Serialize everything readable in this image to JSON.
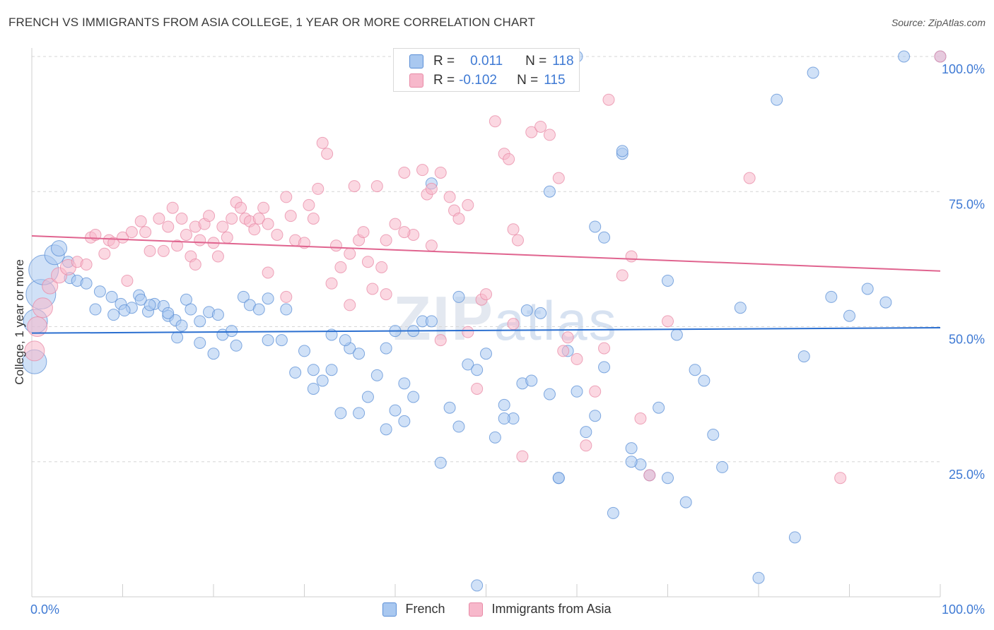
{
  "header": {
    "title": "FRENCH VS IMMIGRANTS FROM ASIA COLLEGE, 1 YEAR OR MORE CORRELATION CHART",
    "source": "Source: ZipAtlas.com"
  },
  "legend_stats": {
    "r_label": "R =",
    "n_label": "N =",
    "french": {
      "r": "0.011",
      "n": "118"
    },
    "asia": {
      "r": "-0.102",
      "n": "115"
    }
  },
  "watermark": {
    "zip": "ZIP",
    "atlas": "atlas"
  },
  "colors": {
    "french_fill": "#a9c8f0",
    "french_stroke": "#5b8fd6",
    "french_line": "#2b6fd0",
    "asia_fill": "#f7b8cb",
    "asia_stroke": "#e88aa6",
    "asia_line": "#e0648f",
    "axis_text": "#3f7ad4",
    "grid": "#d6d6d6"
  },
  "chart_data": {
    "type": "scatter",
    "title": "FRENCH VS IMMIGRANTS FROM ASIA COLLEGE, 1 YEAR OR MORE CORRELATION CHART",
    "xlabel": "",
    "ylabel": "College, 1 year or more",
    "xlim": [
      0,
      100
    ],
    "ylim": [
      0,
      100
    ],
    "x_tick_labels": [
      "0.0%",
      "100.0%"
    ],
    "y_tick_labels": [
      "25.0%",
      "50.0%",
      "75.0%",
      "100.0%"
    ],
    "y_ticks": [
      25,
      50,
      75,
      100
    ],
    "grid": true,
    "legend_position": "bottom",
    "series": [
      {
        "name": "French",
        "r": 0.011,
        "n": 118,
        "trend": {
          "x": [
            0,
            100
          ],
          "y": [
            48.8,
            49.8
          ]
        },
        "points": [
          [
            0.3,
            43.5,
            4
          ],
          [
            0.4,
            51,
            4
          ],
          [
            1,
            56,
            5
          ],
          [
            1.3,
            60.5,
            5
          ],
          [
            2.5,
            63.3,
            3
          ],
          [
            3,
            64.5,
            2
          ],
          [
            4,
            62,
            1
          ],
          [
            4.2,
            59,
            1
          ],
          [
            5,
            58.5,
            1
          ],
          [
            6,
            58,
            1
          ],
          [
            7.5,
            56.5,
            1
          ],
          [
            8.8,
            55.5,
            1
          ],
          [
            9.8,
            54.2,
            1
          ],
          [
            11,
            53.5,
            1
          ],
          [
            11.8,
            55.8,
            1
          ],
          [
            12.8,
            52.8,
            1
          ],
          [
            7,
            53.2,
            1
          ],
          [
            9,
            52.2,
            1
          ],
          [
            10.2,
            53,
            1
          ],
          [
            13.5,
            54.2,
            1
          ],
          [
            14.5,
            53.8,
            1
          ],
          [
            15,
            52,
            1
          ],
          [
            15.8,
            51.2,
            1
          ],
          [
            16.5,
            50.2,
            1
          ],
          [
            17,
            55,
            1
          ],
          [
            16,
            48,
            1
          ],
          [
            17.5,
            53.2,
            1
          ],
          [
            18.5,
            51,
            1
          ],
          [
            19.5,
            52.7,
            1
          ],
          [
            20.5,
            52.2,
            1
          ],
          [
            21,
            48.5,
            1
          ],
          [
            22,
            49.2,
            1
          ],
          [
            23.3,
            55.5,
            1
          ],
          [
            24,
            54,
            1
          ],
          [
            22.5,
            46.5,
            1
          ],
          [
            25,
            53.2,
            1
          ],
          [
            26,
            55.2,
            1
          ],
          [
            27.5,
            47.5,
            1
          ],
          [
            29,
            41.5,
            1
          ],
          [
            30,
            45.5,
            1
          ],
          [
            31,
            38.5,
            1
          ],
          [
            32,
            40,
            1
          ],
          [
            33,
            42,
            1
          ],
          [
            34,
            34,
            1
          ],
          [
            35,
            46,
            1
          ],
          [
            36,
            45,
            1
          ],
          [
            37,
            37,
            1
          ],
          [
            38,
            41,
            1
          ],
          [
            39,
            46,
            1
          ],
          [
            40,
            34.5,
            1
          ],
          [
            41,
            32.5,
            1
          ],
          [
            42,
            37,
            1
          ],
          [
            43,
            51,
            1
          ],
          [
            44,
            76.5,
            1
          ],
          [
            45,
            24.8,
            1
          ],
          [
            46,
            35,
            1
          ],
          [
            47,
            31.5,
            1
          ],
          [
            48,
            43,
            1
          ],
          [
            49,
            42,
            1
          ],
          [
            50,
            45,
            1
          ],
          [
            51,
            29.5,
            1
          ],
          [
            52,
            35.5,
            1
          ],
          [
            53,
            33,
            1
          ],
          [
            54,
            39.5,
            1
          ],
          [
            55,
            40,
            1
          ],
          [
            56,
            52.5,
            1
          ],
          [
            57,
            37.5,
            1
          ],
          [
            58,
            22,
            1
          ],
          [
            59,
            45.5,
            1
          ],
          [
            60,
            38,
            1
          ],
          [
            61,
            30.5,
            1
          ],
          [
            62,
            33.5,
            1
          ],
          [
            63,
            42.5,
            1
          ],
          [
            64,
            15.5,
            1
          ],
          [
            65,
            82,
            1
          ],
          [
            66,
            27.5,
            1
          ],
          [
            67,
            24.5,
            1
          ],
          [
            68,
            22.5,
            1
          ],
          [
            69,
            35,
            1
          ],
          [
            70,
            58.5,
            1
          ],
          [
            71,
            48.5,
            1
          ],
          [
            72,
            17.5,
            1
          ],
          [
            73,
            42,
            1
          ],
          [
            74,
            40,
            1
          ],
          [
            75,
            30,
            1
          ],
          [
            76,
            24,
            1
          ],
          [
            78,
            53.5,
            1
          ],
          [
            80,
            3.5,
            1
          ],
          [
            82,
            92,
            1
          ],
          [
            84,
            11,
            1
          ],
          [
            85,
            44.5,
            1
          ],
          [
            86,
            97,
            1
          ],
          [
            88,
            55.5,
            1
          ],
          [
            90,
            52,
            1
          ],
          [
            92,
            57,
            1
          ],
          [
            94,
            54.5,
            1
          ],
          [
            96,
            100,
            1
          ],
          [
            100,
            100,
            1
          ],
          [
            60,
            100,
            1
          ],
          [
            70,
            22,
            1
          ],
          [
            65,
            82.5,
            1
          ],
          [
            57,
            75,
            1
          ],
          [
            62,
            68.5,
            1
          ],
          [
            44,
            51,
            1
          ],
          [
            47,
            55.5,
            1
          ],
          [
            39,
            31,
            1
          ],
          [
            36,
            34,
            1
          ],
          [
            40,
            49.2,
            1
          ],
          [
            28,
            53.2,
            1
          ],
          [
            31,
            42,
            1
          ],
          [
            33,
            48.5,
            1
          ],
          [
            52,
            33,
            1
          ],
          [
            54.5,
            53,
            1
          ],
          [
            42,
            49.2,
            1
          ],
          [
            49,
            2.1,
            1
          ],
          [
            63,
            66.5,
            1
          ],
          [
            58,
            22,
            1
          ],
          [
            66,
            25,
            1
          ],
          [
            41,
            39.5,
            1
          ],
          [
            34.5,
            47.5,
            1
          ],
          [
            26,
            47.5,
            1
          ],
          [
            20,
            45,
            1
          ],
          [
            18.5,
            47,
            1
          ],
          [
            15,
            52.5,
            1
          ],
          [
            13,
            54,
            1
          ],
          [
            12,
            55,
            1
          ]
        ]
      },
      {
        "name": "Immigrants from Asia",
        "r": -0.102,
        "n": 115,
        "trend": {
          "x": [
            0,
            100
          ],
          "y": [
            66.8,
            60.3
          ]
        },
        "points": [
          [
            0.3,
            45.5,
            3
          ],
          [
            0.6,
            50,
            3
          ],
          [
            1.2,
            53.5,
            3
          ],
          [
            2,
            57.5,
            2
          ],
          [
            3,
            59.5,
            2
          ],
          [
            4,
            61,
            2
          ],
          [
            5,
            62,
            1
          ],
          [
            6,
            61.5,
            1
          ],
          [
            6.5,
            66.5,
            1
          ],
          [
            7,
            67,
            1
          ],
          [
            8,
            63.5,
            1
          ],
          [
            8.5,
            66,
            1
          ],
          [
            9,
            65.5,
            1
          ],
          [
            10,
            66.5,
            1
          ],
          [
            10.5,
            58.5,
            1
          ],
          [
            11,
            67.5,
            1
          ],
          [
            12,
            69.5,
            1
          ],
          [
            12.5,
            67.5,
            1
          ],
          [
            13,
            64,
            1
          ],
          [
            14,
            70,
            1
          ],
          [
            14.5,
            64,
            1
          ],
          [
            15,
            68.5,
            1
          ],
          [
            15.5,
            72,
            1
          ],
          [
            16,
            65,
            1
          ],
          [
            16.5,
            70,
            1
          ],
          [
            17,
            67,
            1
          ],
          [
            17.5,
            63,
            1
          ],
          [
            18,
            68.5,
            1
          ],
          [
            18.5,
            66,
            1
          ],
          [
            19,
            69,
            1
          ],
          [
            19.5,
            70.5,
            1
          ],
          [
            20,
            65.5,
            1
          ],
          [
            20.5,
            63,
            1
          ],
          [
            21,
            68.5,
            1
          ],
          [
            22,
            70,
            1
          ],
          [
            22.5,
            73,
            1
          ],
          [
            23,
            72,
            1
          ],
          [
            23.5,
            70,
            1
          ],
          [
            24,
            69.5,
            1
          ],
          [
            25,
            70,
            1
          ],
          [
            25.5,
            72,
            1
          ],
          [
            26,
            69,
            1
          ],
          [
            27,
            67,
            1
          ],
          [
            28,
            74,
            1
          ],
          [
            28.5,
            70.5,
            1
          ],
          [
            29,
            66,
            1
          ],
          [
            30,
            65.5,
            1
          ],
          [
            31,
            70,
            1
          ],
          [
            31.5,
            75.5,
            1
          ],
          [
            32,
            84,
            1
          ],
          [
            32.5,
            82,
            1
          ],
          [
            33,
            58,
            1
          ],
          [
            34,
            61,
            1
          ],
          [
            35,
            54,
            1
          ],
          [
            35.5,
            76,
            1
          ],
          [
            36,
            66,
            1
          ],
          [
            37,
            62,
            1
          ],
          [
            37.5,
            57,
            1
          ],
          [
            38,
            76,
            1
          ],
          [
            38.5,
            61,
            1
          ],
          [
            39,
            56,
            1
          ],
          [
            40,
            69,
            1
          ],
          [
            41,
            78.5,
            1
          ],
          [
            42,
            67,
            1
          ],
          [
            43,
            79,
            1
          ],
          [
            43.5,
            74.5,
            1
          ],
          [
            44,
            65,
            1
          ],
          [
            45,
            78.5,
            1
          ],
          [
            46,
            74,
            1
          ],
          [
            46.5,
            71.5,
            1
          ],
          [
            47,
            70,
            1
          ],
          [
            48,
            72.5,
            1
          ],
          [
            49,
            38.5,
            1
          ],
          [
            49.5,
            55,
            1
          ],
          [
            50,
            56,
            1
          ],
          [
            51,
            88,
            1
          ],
          [
            52,
            82,
            1
          ],
          [
            52.5,
            81,
            1
          ],
          [
            53,
            68,
            1
          ],
          [
            53.5,
            66,
            1
          ],
          [
            54,
            26,
            1
          ],
          [
            55,
            86,
            1
          ],
          [
            56,
            87,
            1
          ],
          [
            57,
            85.5,
            1
          ],
          [
            58,
            77.5,
            1
          ],
          [
            58.5,
            45.5,
            1
          ],
          [
            59,
            48,
            1
          ],
          [
            60,
            44,
            1
          ],
          [
            61,
            28,
            1
          ],
          [
            62,
            38,
            1
          ],
          [
            63,
            46,
            1
          ],
          [
            63.5,
            92,
            1
          ],
          [
            65,
            59.5,
            1
          ],
          [
            66,
            63,
            1
          ],
          [
            67,
            33,
            1
          ],
          [
            68,
            22.5,
            1
          ],
          [
            70,
            51,
            1
          ],
          [
            79,
            77.5,
            1
          ],
          [
            89,
            22,
            1
          ],
          [
            100,
            100,
            1
          ],
          [
            44,
            75.5,
            1
          ],
          [
            35,
            63.5,
            1
          ],
          [
            26,
            60,
            1
          ],
          [
            39,
            66,
            1
          ],
          [
            48,
            49,
            1
          ],
          [
            41,
            67.5,
            1
          ],
          [
            45,
            47.5,
            1
          ],
          [
            53,
            50.5,
            1
          ],
          [
            28,
            55.5,
            1
          ],
          [
            33.5,
            65,
            1
          ],
          [
            36.5,
            67.5,
            1
          ],
          [
            30.5,
            72.5,
            1
          ],
          [
            24.5,
            68,
            1
          ],
          [
            21.5,
            66.5,
            1
          ],
          [
            18,
            61.5,
            1
          ]
        ]
      }
    ]
  },
  "bottom_legend": {
    "french": "French",
    "asia": "Immigrants from Asia"
  }
}
